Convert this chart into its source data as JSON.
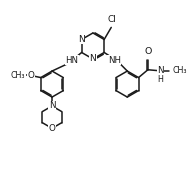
{
  "bg": "#ffffff",
  "lc": "#1a1a1a",
  "lw": 1.1,
  "fs": 6.0,
  "fw": 1.89,
  "fh": 1.7,
  "dpi": 100,
  "xl": [
    0,
    10
  ],
  "yl": [
    0,
    9
  ]
}
